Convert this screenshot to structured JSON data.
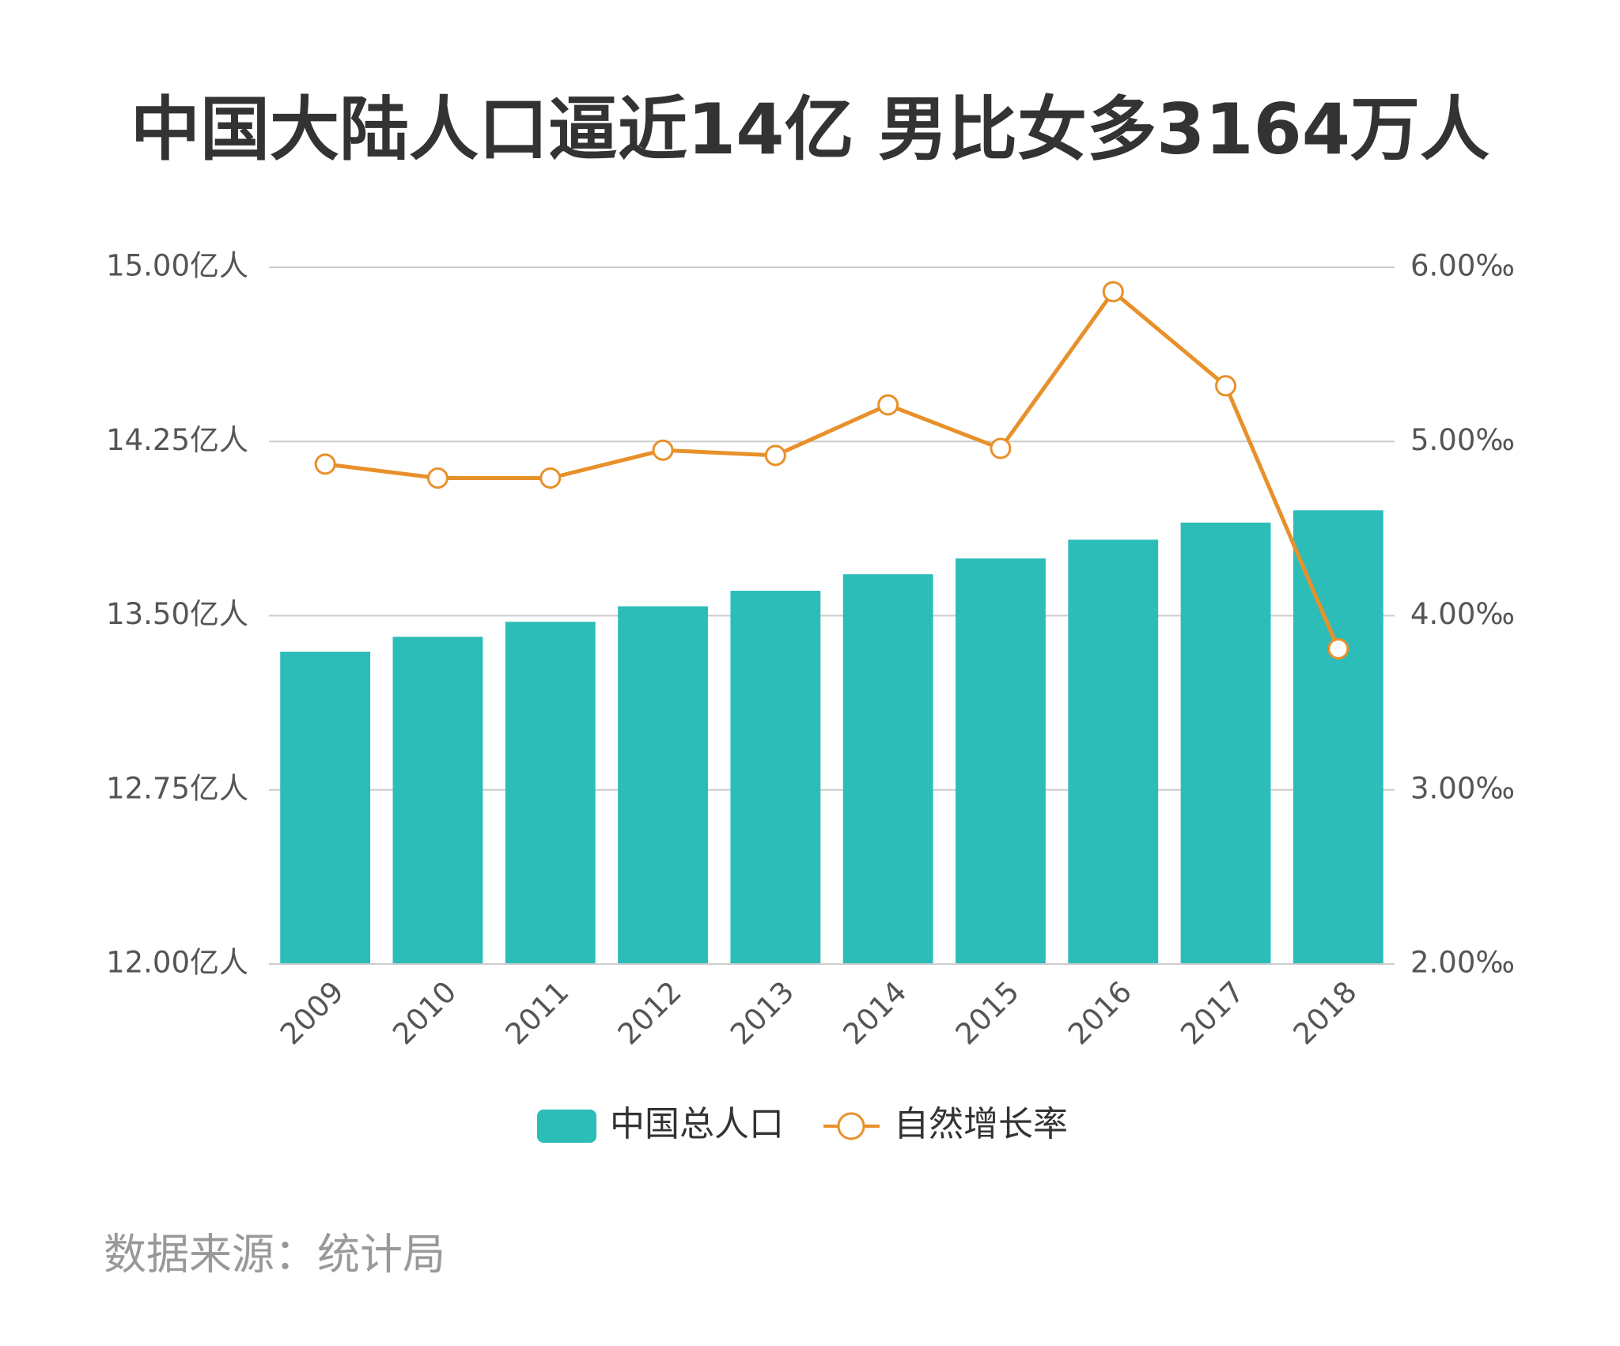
{
  "chart_data": {
    "type": "bar",
    "title": "中国大陆人口逼近14亿 男比女多3164万人",
    "source": "数据来源：统计局",
    "categories": [
      "2009",
      "2010",
      "2011",
      "2012",
      "2013",
      "2014",
      "2015",
      "2016",
      "2017",
      "2018"
    ],
    "series": [
      {
        "name": "中国总人口",
        "type": "bar",
        "color": "#2dbdb9",
        "values": [
          13.345,
          13.4091,
          13.4735,
          13.5404,
          13.6072,
          13.6782,
          13.7462,
          13.8271,
          13.9008,
          13.9538
        ]
      },
      {
        "name": "自然增长率",
        "type": "line",
        "axis": "y2",
        "color": "#e8902a",
        "values": [
          4.87,
          4.79,
          4.79,
          4.95,
          4.92,
          5.21,
          4.96,
          5.86,
          5.32,
          3.81
        ]
      }
    ],
    "ylim": [
      12,
      15
    ],
    "yticks": [
      {
        "value": 12,
        "label": "12.00亿人"
      },
      {
        "value": 12.75,
        "label": "12.75亿人"
      },
      {
        "value": 13.5,
        "label": "13.50亿人"
      },
      {
        "value": 14.25,
        "label": "14.25亿人"
      },
      {
        "value": 15,
        "label": "15.00亿人"
      }
    ],
    "y2lim": [
      2,
      6
    ],
    "y2ticks": [
      {
        "value": 2,
        "label": "2.00‰"
      },
      {
        "value": 3,
        "label": "3.00‰"
      },
      {
        "value": 4,
        "label": "4.00‰"
      },
      {
        "value": 5,
        "label": "5.00‰"
      },
      {
        "value": 6,
        "label": "6.00‰"
      }
    ],
    "grid": true
  }
}
